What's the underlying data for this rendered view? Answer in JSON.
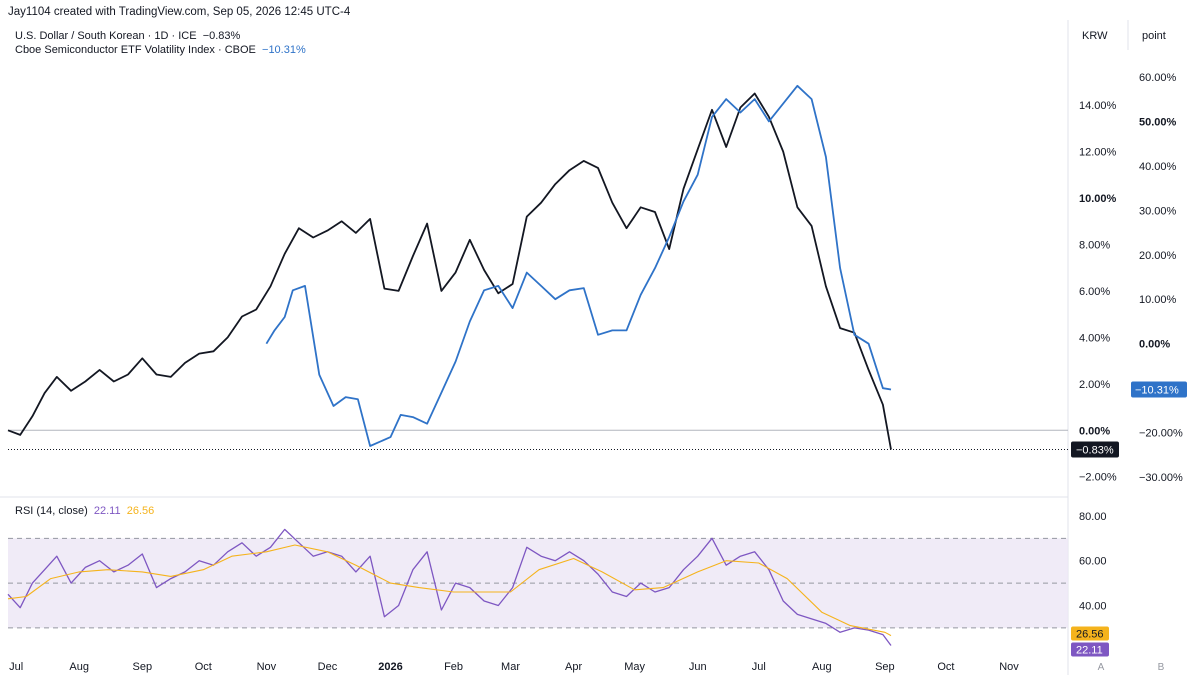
{
  "credit": "Jay1104 created with TradingView.com, Sep 05, 2026 12:45 UTC-4",
  "legend": {
    "line1_label": "U.S. Dollar / South Korean · 1D · ICE",
    "line1_value": "−0.83%",
    "line2_label": "Cboe Semiconductor ETF Volatility Index · CBOE",
    "line2_value": "−10.31%",
    "rsi_label": "RSI (14, close)",
    "rsi_value": "22.11",
    "rsi_ma_value": "26.56"
  },
  "axis_headers": {
    "left_scale": "KRW",
    "right_scale": "point"
  },
  "colors": {
    "usdkrw": "#131722",
    "vxsox": "#2f73c8",
    "rsi": "#7e57c2",
    "rsi_ma": "#f5b31c",
    "rsi_band": "#ede7f6"
  },
  "chart_data": [
    {
      "type": "line",
      "title": "",
      "x_range": [
        "2025-06-27",
        "2026-11-30"
      ],
      "x_ticks": [
        {
          "label": "Jul",
          "date": "2025-07-01"
        },
        {
          "label": "Aug",
          "date": "2025-08-01"
        },
        {
          "label": "Sep",
          "date": "2025-09-01"
        },
        {
          "label": "Oct",
          "date": "2025-10-01"
        },
        {
          "label": "Nov",
          "date": "2025-11-01"
        },
        {
          "label": "Dec",
          "date": "2025-12-01"
        },
        {
          "label": "2026",
          "date": "2026-01-01"
        },
        {
          "label": "Feb",
          "date": "2026-02-01"
        },
        {
          "label": "Mar",
          "date": "2026-03-01"
        },
        {
          "label": "Apr",
          "date": "2026-04-01"
        },
        {
          "label": "May",
          "date": "2026-05-01"
        },
        {
          "label": "Jun",
          "date": "2026-06-01"
        },
        {
          "label": "Jul",
          "date": "2026-07-01"
        },
        {
          "label": "Aug",
          "date": "2026-08-01"
        },
        {
          "label": "Sep",
          "date": "2026-09-01"
        },
        {
          "label": "Oct",
          "date": "2026-10-01"
        },
        {
          "label": "Nov",
          "date": "2026-11-01"
        }
      ],
      "axis_left": {
        "unit": "KRW",
        "range": [
          -2.4,
          15.6
        ],
        "ticks": [
          "14.00%",
          "12.00%",
          "10.00%",
          "8.00%",
          "6.00%",
          "4.00%",
          "2.00%",
          "0.00%",
          "−2.00%"
        ],
        "tick_values": [
          14,
          12,
          10,
          8,
          6,
          4,
          2,
          0,
          -2
        ],
        "bold_tick": "10.00%",
        "zero_label": "0.00%",
        "last_value_label": "−0.83%",
        "last_value": -0.83
      },
      "axis_right": {
        "unit": "point",
        "range": [
          -32,
          62
        ],
        "ticks": [
          "60.00%",
          "50.00%",
          "40.00%",
          "30.00%",
          "20.00%",
          "10.00%",
          "0.00%",
          "−20.00%",
          "−30.00%"
        ],
        "tick_values": [
          60,
          50,
          40,
          30,
          20,
          10,
          0,
          -20,
          -30
        ],
        "bold_ticks": [
          "50.00%",
          "0.00%"
        ],
        "last_value_label": "−10.31%",
        "last_value": -10.31
      },
      "series": [
        {
          "axis": "left",
          "color": "#131722",
          "points": [
            [
              "2025-06-27",
              0.0
            ],
            [
              "2025-07-03",
              -0.2
            ],
            [
              "2025-07-09",
              0.6
            ],
            [
              "2025-07-15",
              1.6
            ],
            [
              "2025-07-21",
              2.3
            ],
            [
              "2025-07-28",
              1.7
            ],
            [
              "2025-08-04",
              2.1
            ],
            [
              "2025-08-11",
              2.6
            ],
            [
              "2025-08-18",
              2.1
            ],
            [
              "2025-08-25",
              2.4
            ],
            [
              "2025-09-01",
              3.1
            ],
            [
              "2025-09-08",
              2.4
            ],
            [
              "2025-09-15",
              2.3
            ],
            [
              "2025-09-22",
              2.9
            ],
            [
              "2025-09-29",
              3.3
            ],
            [
              "2025-10-06",
              3.4
            ],
            [
              "2025-10-13",
              4.0
            ],
            [
              "2025-10-20",
              4.9
            ],
            [
              "2025-10-27",
              5.2
            ],
            [
              "2025-11-03",
              6.2
            ],
            [
              "2025-11-10",
              7.6
            ],
            [
              "2025-11-17",
              8.7
            ],
            [
              "2025-11-24",
              8.3
            ],
            [
              "2025-12-01",
              8.6
            ],
            [
              "2025-12-08",
              9.0
            ],
            [
              "2025-12-15",
              8.5
            ],
            [
              "2025-12-22",
              9.1
            ],
            [
              "2025-12-29",
              6.1
            ],
            [
              "2026-01-05",
              6.0
            ],
            [
              "2026-01-12",
              7.5
            ],
            [
              "2026-01-19",
              8.9
            ],
            [
              "2026-01-26",
              6.0
            ],
            [
              "2026-02-02",
              6.8
            ],
            [
              "2026-02-09",
              8.2
            ],
            [
              "2026-02-16",
              6.9
            ],
            [
              "2026-02-23",
              5.9
            ],
            [
              "2026-03-02",
              6.3
            ],
            [
              "2026-03-09",
              9.2
            ],
            [
              "2026-03-16",
              9.8
            ],
            [
              "2026-03-23",
              10.6
            ],
            [
              "2026-03-30",
              11.2
            ],
            [
              "2026-04-06",
              11.6
            ],
            [
              "2026-04-13",
              11.3
            ],
            [
              "2026-04-20",
              9.8
            ],
            [
              "2026-04-27",
              8.7
            ],
            [
              "2026-05-04",
              9.6
            ],
            [
              "2026-05-11",
              9.4
            ],
            [
              "2026-05-18",
              7.8
            ],
            [
              "2026-05-25",
              10.4
            ],
            [
              "2026-06-01",
              12.1
            ],
            [
              "2026-06-08",
              13.8
            ],
            [
              "2026-06-15",
              12.2
            ],
            [
              "2026-06-22",
              13.9
            ],
            [
              "2026-06-29",
              14.5
            ],
            [
              "2026-07-06",
              13.5
            ],
            [
              "2026-07-13",
              12.0
            ],
            [
              "2026-07-20",
              9.6
            ],
            [
              "2026-07-27",
              8.8
            ],
            [
              "2026-08-03",
              6.2
            ],
            [
              "2026-08-10",
              4.4
            ],
            [
              "2026-08-17",
              4.2
            ],
            [
              "2026-08-24",
              2.6
            ],
            [
              "2026-08-31",
              1.1
            ],
            [
              "2026-09-04",
              -0.83
            ]
          ]
        },
        {
          "axis": "right",
          "color": "#2f73c8",
          "points": [
            [
              "2025-11-01",
              0.0
            ],
            [
              "2025-11-05",
              3.0
            ],
            [
              "2025-11-10",
              6.0
            ],
            [
              "2025-11-14",
              12.0
            ],
            [
              "2025-11-20",
              13.0
            ],
            [
              "2025-11-27",
              -7.0
            ],
            [
              "2025-12-04",
              -14.0
            ],
            [
              "2025-12-10",
              -12.0
            ],
            [
              "2025-12-16",
              -12.5
            ],
            [
              "2025-12-22",
              -23.0
            ],
            [
              "2026-01-01",
              -21.0
            ],
            [
              "2026-01-06",
              -16.0
            ],
            [
              "2026-01-12",
              -16.5
            ],
            [
              "2026-01-19",
              -18.0
            ],
            [
              "2026-01-26",
              -11.0
            ],
            [
              "2026-02-02",
              -4.0
            ],
            [
              "2026-02-09",
              5.0
            ],
            [
              "2026-02-16",
              12.0
            ],
            [
              "2026-02-23",
              13.0
            ],
            [
              "2026-03-02",
              8.0
            ],
            [
              "2026-03-09",
              16.0
            ],
            [
              "2026-03-16",
              13.0
            ],
            [
              "2026-03-23",
              10.0
            ],
            [
              "2026-03-30",
              12.0
            ],
            [
              "2026-04-06",
              12.5
            ],
            [
              "2026-04-13",
              2.0
            ],
            [
              "2026-04-20",
              3.0
            ],
            [
              "2026-04-27",
              3.0
            ],
            [
              "2026-05-04",
              11.0
            ],
            [
              "2026-05-11",
              17.0
            ],
            [
              "2026-05-18",
              24.0
            ],
            [
              "2026-05-25",
              32.0
            ],
            [
              "2026-06-01",
              38.0
            ],
            [
              "2026-06-08",
              51.0
            ],
            [
              "2026-06-15",
              55.0
            ],
            [
              "2026-06-22",
              52.0
            ],
            [
              "2026-06-29",
              55.0
            ],
            [
              "2026-07-06",
              50.0
            ],
            [
              "2026-07-13",
              54.0
            ],
            [
              "2026-07-20",
              58.0
            ],
            [
              "2026-07-27",
              55.0
            ],
            [
              "2026-08-03",
              42.0
            ],
            [
              "2026-08-10",
              17.0
            ],
            [
              "2026-08-17",
              2.0
            ],
            [
              "2026-08-24",
              0.0
            ],
            [
              "2026-08-31",
              -10.0
            ],
            [
              "2026-09-04",
              -10.31
            ]
          ]
        }
      ]
    },
    {
      "type": "line",
      "title": "",
      "legend": [
        "RSI (14, close)"
      ],
      "y_range": [
        21,
        84
      ],
      "y_ticks": [
        "80.00",
        "60.00",
        "40.00"
      ],
      "y_tick_values": [
        80,
        60,
        40
      ],
      "band": [
        30,
        70
      ],
      "midline": 50,
      "last_value_labels": [
        "26.56",
        "22.11"
      ],
      "series": [
        {
          "color": "#7e57c2",
          "last_value": 22.11,
          "points": [
            [
              "2025-06-27",
              45
            ],
            [
              "2025-07-03",
              39
            ],
            [
              "2025-07-09",
              50
            ],
            [
              "2025-07-15",
              56
            ],
            [
              "2025-07-21",
              62
            ],
            [
              "2025-07-28",
              50
            ],
            [
              "2025-08-04",
              57
            ],
            [
              "2025-08-11",
              60
            ],
            [
              "2025-08-18",
              55
            ],
            [
              "2025-08-25",
              58
            ],
            [
              "2025-09-01",
              63
            ],
            [
              "2025-09-08",
              48
            ],
            [
              "2025-09-15",
              52
            ],
            [
              "2025-09-22",
              55
            ],
            [
              "2025-09-29",
              60
            ],
            [
              "2025-10-06",
              58
            ],
            [
              "2025-10-13",
              64
            ],
            [
              "2025-10-20",
              68
            ],
            [
              "2025-10-27",
              62
            ],
            [
              "2025-11-03",
              66
            ],
            [
              "2025-11-10",
              74
            ],
            [
              "2025-11-17",
              68
            ],
            [
              "2025-11-24",
              62
            ],
            [
              "2025-12-01",
              64
            ],
            [
              "2025-12-08",
              62
            ],
            [
              "2025-12-15",
              55
            ],
            [
              "2025-12-22",
              62
            ],
            [
              "2025-12-29",
              35
            ],
            [
              "2026-01-05",
              40
            ],
            [
              "2026-01-12",
              56
            ],
            [
              "2026-01-19",
              64
            ],
            [
              "2026-01-26",
              38
            ],
            [
              "2026-02-02",
              50
            ],
            [
              "2026-02-09",
              48
            ],
            [
              "2026-02-16",
              42
            ],
            [
              "2026-02-23",
              40
            ],
            [
              "2026-03-02",
              48
            ],
            [
              "2026-03-09",
              66
            ],
            [
              "2026-03-16",
              62
            ],
            [
              "2026-03-23",
              60
            ],
            [
              "2026-03-30",
              64
            ],
            [
              "2026-04-06",
              60
            ],
            [
              "2026-04-13",
              54
            ],
            [
              "2026-04-20",
              46
            ],
            [
              "2026-04-27",
              44
            ],
            [
              "2026-05-04",
              50
            ],
            [
              "2026-05-11",
              46
            ],
            [
              "2026-05-18",
              48
            ],
            [
              "2026-05-25",
              56
            ],
            [
              "2026-06-01",
              62
            ],
            [
              "2026-06-08",
              70
            ],
            [
              "2026-06-15",
              58
            ],
            [
              "2026-06-22",
              62
            ],
            [
              "2026-06-29",
              64
            ],
            [
              "2026-07-06",
              56
            ],
            [
              "2026-07-13",
              42
            ],
            [
              "2026-07-20",
              36
            ],
            [
              "2026-07-27",
              34
            ],
            [
              "2026-08-03",
              32
            ],
            [
              "2026-08-10",
              28
            ],
            [
              "2026-08-17",
              30
            ],
            [
              "2026-08-24",
              29
            ],
            [
              "2026-08-31",
              27
            ],
            [
              "2026-09-04",
              22.11
            ]
          ]
        },
        {
          "color": "#f5b31c",
          "last_value": 26.56,
          "points": [
            [
              "2025-06-27",
              43
            ],
            [
              "2025-07-06",
              44
            ],
            [
              "2025-07-18",
              52
            ],
            [
              "2025-08-01",
              55
            ],
            [
              "2025-08-15",
              56
            ],
            [
              "2025-09-01",
              55
            ],
            [
              "2025-09-15",
              53
            ],
            [
              "2025-10-01",
              56
            ],
            [
              "2025-10-15",
              62
            ],
            [
              "2025-11-01",
              64
            ],
            [
              "2025-11-15",
              67
            ],
            [
              "2025-12-01",
              64
            ],
            [
              "2025-12-15",
              58
            ],
            [
              "2026-01-01",
              50
            ],
            [
              "2026-01-15",
              48
            ],
            [
              "2026-02-01",
              46
            ],
            [
              "2026-02-15",
              46
            ],
            [
              "2026-03-01",
              46
            ],
            [
              "2026-03-15",
              56
            ],
            [
              "2026-04-01",
              61
            ],
            [
              "2026-04-15",
              55
            ],
            [
              "2026-05-01",
              47
            ],
            [
              "2026-05-15",
              48
            ],
            [
              "2026-06-01",
              55
            ],
            [
              "2026-06-15",
              60
            ],
            [
              "2026-07-01",
              59
            ],
            [
              "2026-07-15",
              52
            ],
            [
              "2026-08-01",
              37
            ],
            [
              "2026-08-15",
              31
            ],
            [
              "2026-09-01",
              28
            ],
            [
              "2026-09-04",
              26.56
            ]
          ]
        }
      ]
    }
  ]
}
